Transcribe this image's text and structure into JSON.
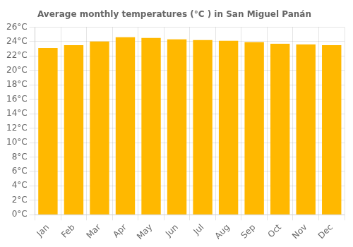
{
  "chart_data": {
    "type": "bar",
    "title": "Average monthly temperatures (°C ) in San Miguel Panán",
    "categories": [
      "Jan",
      "Feb",
      "Mar",
      "Apr",
      "May",
      "Jun",
      "Jul",
      "Aug",
      "Sep",
      "Oct",
      "Nov",
      "Dec"
    ],
    "values": [
      23.1,
      23.5,
      24.0,
      24.6,
      24.5,
      24.3,
      24.2,
      24.1,
      23.9,
      23.7,
      23.6,
      23.5
    ],
    "color": "#FFB800",
    "ylim": [
      0,
      26
    ],
    "yticks": [
      {
        "value": 0,
        "label": "0°C"
      },
      {
        "value": 2,
        "label": "2°C"
      },
      {
        "value": 4,
        "label": "4°C"
      },
      {
        "value": 6,
        "label": "6°C"
      },
      {
        "value": 8,
        "label": "8°C"
      },
      {
        "value": 10,
        "label": "10°C"
      },
      {
        "value": 12,
        "label": "12°C"
      },
      {
        "value": 14,
        "label": "14°C"
      },
      {
        "value": 16,
        "label": "16°C"
      },
      {
        "value": 18,
        "label": "18°C"
      },
      {
        "value": 20,
        "label": "20°C"
      },
      {
        "value": 22,
        "label": "22°C"
      },
      {
        "value": 24,
        "label": "24°C"
      },
      {
        "value": 26,
        "label": "26°C"
      }
    ],
    "grid": true
  }
}
